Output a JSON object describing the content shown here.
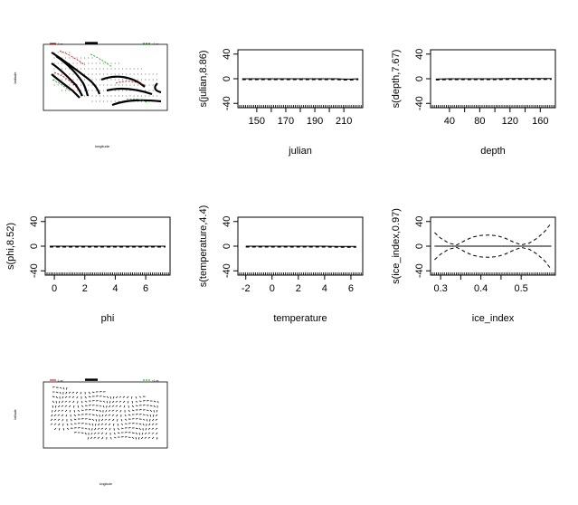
{
  "chart_data": [
    {
      "type": "contour",
      "title": "",
      "xlabel": "longitude",
      "ylabel": "latitude",
      "legend": [
        "-1 se",
        "",
        "+1 se"
      ],
      "colors": {
        "minus_se": "#cc0000",
        "estimate": "#000000",
        "plus_se": "#00aa00"
      }
    },
    {
      "type": "line",
      "xlabel": "julian",
      "ylabel": "s(julian,8.86)",
      "xticks": [
        150,
        170,
        190,
        210
      ],
      "xticks_minor": [
        160,
        180,
        200
      ],
      "yticks": [
        -40,
        0,
        40
      ],
      "xlim": [
        137,
        223
      ],
      "ylim": [
        -47,
        47
      ],
      "x": [
        140,
        150,
        160,
        170,
        180,
        190,
        200,
        205,
        210,
        215,
        220
      ],
      "y": [
        0,
        0,
        0,
        0,
        0,
        0,
        0,
        0,
        -0.5,
        -0.5,
        0
      ]
    },
    {
      "type": "line",
      "xlabel": "depth",
      "ylabel": "s(depth,7.67)",
      "xticks": [
        40,
        80,
        120,
        160
      ],
      "xticks_minor": [
        60,
        100,
        140
      ],
      "yticks": [
        -40,
        0,
        40
      ],
      "xlim": [
        15,
        180
      ],
      "ylim": [
        -47,
        47
      ],
      "x": [
        22,
        40,
        60,
        80,
        100,
        120,
        140,
        160,
        175
      ],
      "y": [
        -0.5,
        0,
        0,
        0,
        0,
        0.3,
        0.3,
        0.3,
        0.3
      ]
    },
    {
      "type": "line",
      "xlabel": "phi",
      "ylabel": "s(phi,8.52)",
      "xticks": [
        0,
        2,
        4,
        6
      ],
      "yticks": [
        -40,
        0,
        40
      ],
      "xlim": [
        -0.6,
        7.6
      ],
      "ylim": [
        -47,
        47
      ],
      "x": [
        -0.3,
        0.5,
        1,
        1.5,
        2,
        3,
        4,
        5,
        6,
        7.3
      ],
      "y": [
        0,
        0,
        0,
        0,
        0,
        0,
        0,
        0,
        0,
        0
      ]
    },
    {
      "type": "line",
      "xlabel": "temperature",
      "ylabel": "s(temperature,4.4)",
      "xticks": [
        -2,
        0,
        2,
        4,
        6
      ],
      "yticks": [
        -40,
        0,
        40
      ],
      "xlim": [
        -2.6,
        6.9
      ],
      "ylim": [
        -47,
        47
      ],
      "x": [
        -2,
        0,
        2,
        4,
        5,
        6.4
      ],
      "y": [
        0,
        0,
        0,
        0,
        -0.3,
        -0.3
      ]
    },
    {
      "type": "line",
      "xlabel": "ice_index",
      "ylabel": "s(ice_index,0.97)",
      "xticks": [
        0.3,
        0.4,
        0.5
      ],
      "xticks_minor": [
        0.35,
        0.45
      ],
      "yticks": [
        -40,
        0,
        40
      ],
      "xlim": [
        0.275,
        0.585
      ],
      "ylim": [
        -47,
        47
      ],
      "x": [
        0.285,
        0.575
      ],
      "y": [
        0,
        0
      ],
      "bands": {
        "x": [
          0.285,
          0.3,
          0.32,
          0.34,
          0.36,
          0.38,
          0.4,
          0.42,
          0.44,
          0.46,
          0.48,
          0.5,
          0.52,
          0.54,
          0.56,
          0.575
        ],
        "upper": [
          22,
          13,
          5,
          2,
          9,
          15,
          17.5,
          18,
          17,
          13,
          7,
          2,
          5,
          13,
          25,
          38
        ],
        "lower": [
          -22,
          -13,
          -5,
          -2,
          -9,
          -15,
          -17.5,
          -18,
          -17,
          -13,
          -7,
          -2,
          -5,
          -13,
          -25,
          -38
        ]
      }
    },
    {
      "type": "vector_field",
      "title": "",
      "xlabel": "longitude",
      "ylabel": "latitude",
      "legend": [
        "-1 se",
        "",
        "+1 se"
      ],
      "colors": {
        "minus_se": "#cc0000",
        "estimate": "#000000",
        "plus_se": "#00aa00"
      }
    }
  ]
}
